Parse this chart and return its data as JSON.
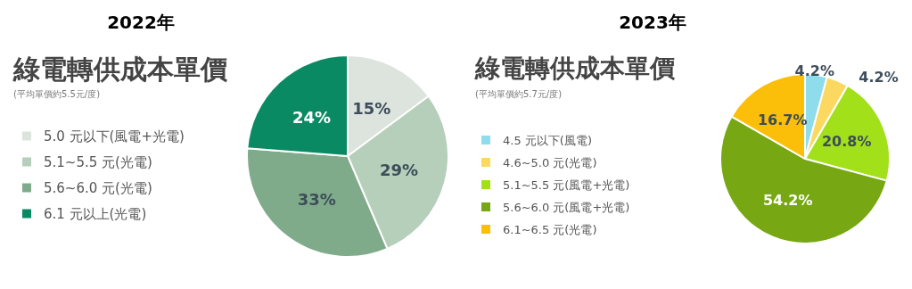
{
  "chart_data": [
    {
      "type": "pie",
      "title": "2022年",
      "subtitle": "綠電轉供成本單價",
      "annotations": [
        "(平均單價約5.5元/度)"
      ],
      "categories": [
        "5.0 元以下(風電+光電)",
        "5.1~5.5 元(光電)",
        "5.6~6.0 元(光電)",
        "6.1 元以上(光電)"
      ],
      "values": [
        15,
        29,
        33,
        24
      ],
      "value_labels": [
        "15%",
        "29%",
        "33%",
        "24%"
      ],
      "colors": [
        "#dde3dd",
        "#b5cfbb",
        "#7fab8a",
        "#0a8a63"
      ],
      "legend": "left"
    },
    {
      "type": "pie",
      "title": "2023年",
      "subtitle": "綠電轉供成本單價",
      "annotations": [
        "(平均單價約5.7元/度)"
      ],
      "categories": [
        "4.5 元以下(風電)",
        "4.6~5.0 元(光電)",
        "5.1~5.5 元(風電+光電)",
        "5.6~6.0 元(風電+光電)",
        "6.1~6.5 元(光電)"
      ],
      "values": [
        4.2,
        4.2,
        20.8,
        54.2,
        16.7
      ],
      "value_labels": [
        "4.2%",
        "4.2%",
        "20.8%",
        "54.2%",
        "16.7%"
      ],
      "colors": [
        "#8fdcec",
        "#fbd860",
        "#a2e01a",
        "#77a813",
        "#fbbf0a"
      ],
      "legend": "left"
    }
  ]
}
